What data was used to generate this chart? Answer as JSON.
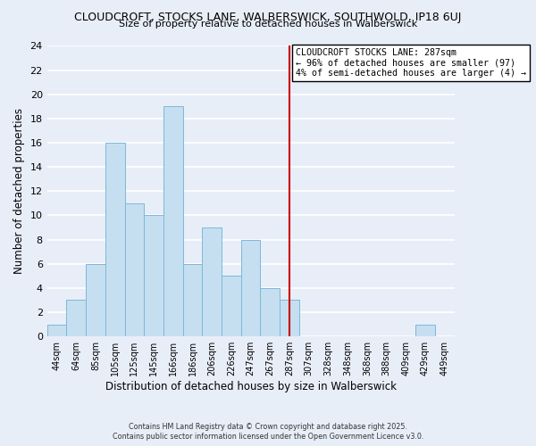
{
  "title": "CLOUDCROFT, STOCKS LANE, WALBERSWICK, SOUTHWOLD, IP18 6UJ",
  "subtitle": "Size of property relative to detached houses in Walberswick",
  "xlabel": "Distribution of detached houses by size in Walberswick",
  "ylabel": "Number of detached properties",
  "bin_labels": [
    "44sqm",
    "64sqm",
    "85sqm",
    "105sqm",
    "125sqm",
    "145sqm",
    "166sqm",
    "186sqm",
    "206sqm",
    "226sqm",
    "247sqm",
    "267sqm",
    "287sqm",
    "307sqm",
    "328sqm",
    "348sqm",
    "368sqm",
    "388sqm",
    "409sqm",
    "429sqm",
    "449sqm"
  ],
  "bin_values": [
    1,
    3,
    6,
    16,
    11,
    10,
    19,
    6,
    9,
    5,
    8,
    4,
    3,
    0,
    0,
    0,
    0,
    0,
    0,
    1,
    0
  ],
  "bar_color": "#c5dff0",
  "bar_edge_color": "#7db8d8",
  "vline_x_index": 12,
  "vline_color": "#cc0000",
  "annotation_text": "CLOUDCROFT STOCKS LANE: 287sqm\n← 96% of detached houses are smaller (97)\n4% of semi-detached houses are larger (4) →",
  "ylim": [
    0,
    24
  ],
  "yticks": [
    0,
    2,
    4,
    6,
    8,
    10,
    12,
    14,
    16,
    18,
    20,
    22,
    24
  ],
  "background_color": "#e8eef8",
  "grid_color": "#ffffff",
  "footer_line1": "Contains HM Land Registry data © Crown copyright and database right 2025.",
  "footer_line2": "Contains public sector information licensed under the Open Government Licence v3.0."
}
